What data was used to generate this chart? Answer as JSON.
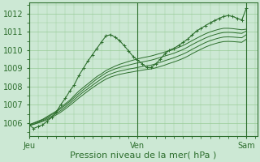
{
  "background_color": "#cce8d4",
  "grid_color": "#99cc99",
  "line_color": "#2d6e2d",
  "xlabel": "Pression niveau de la mer( hPa )",
  "xlabel_fontsize": 8,
  "tick_label_fontsize": 7,
  "day_labels": [
    "Jeu",
    "Ven",
    "Sam"
  ],
  "day_positions": [
    0.0,
    0.5,
    1.0
  ],
  "ylim": [
    1005.3,
    1012.6
  ],
  "yticks": [
    1006,
    1007,
    1008,
    1009,
    1010,
    1011,
    1012
  ],
  "xlim": [
    0.0,
    1.05
  ],
  "n_points": 49,
  "series_marked": [
    1005.9,
    1005.7,
    1005.8,
    1005.9,
    1006.1,
    1006.3,
    1006.6,
    1007.0,
    1007.35,
    1007.75,
    1008.1,
    1008.6,
    1009.0,
    1009.4,
    1009.75,
    1010.1,
    1010.45,
    1010.78,
    1010.85,
    1010.72,
    1010.52,
    1010.25,
    1009.95,
    1009.65,
    1009.45,
    1009.25,
    1009.05,
    1009.05,
    1009.25,
    1009.5,
    1009.8,
    1010.0,
    1010.1,
    1010.25,
    1010.42,
    1010.6,
    1010.82,
    1011.05,
    1011.2,
    1011.35,
    1011.5,
    1011.62,
    1011.75,
    1011.85,
    1011.9,
    1011.85,
    1011.75,
    1011.65,
    1012.3
  ],
  "series_linear": [
    [
      1005.9,
      1006.0,
      1006.1,
      1006.2,
      1006.35,
      1006.5,
      1006.65,
      1006.85,
      1007.05,
      1007.25,
      1007.5,
      1007.75,
      1007.95,
      1008.15,
      1008.35,
      1008.55,
      1008.7,
      1008.88,
      1009.0,
      1009.12,
      1009.22,
      1009.3,
      1009.38,
      1009.45,
      1009.52,
      1009.58,
      1009.63,
      1009.68,
      1009.75,
      1009.82,
      1009.9,
      1009.97,
      1010.05,
      1010.15,
      1010.25,
      1010.38,
      1010.52,
      1010.65,
      1010.78,
      1010.9,
      1011.0,
      1011.08,
      1011.15,
      1011.2,
      1011.2,
      1011.18,
      1011.15,
      1011.12,
      1011.15
    ],
    [
      1005.9,
      1005.98,
      1006.07,
      1006.17,
      1006.3,
      1006.45,
      1006.6,
      1006.78,
      1006.97,
      1007.17,
      1007.4,
      1007.62,
      1007.83,
      1008.02,
      1008.22,
      1008.42,
      1008.58,
      1008.75,
      1008.87,
      1008.97,
      1009.05,
      1009.12,
      1009.18,
      1009.24,
      1009.3,
      1009.35,
      1009.4,
      1009.45,
      1009.52,
      1009.6,
      1009.68,
      1009.75,
      1009.83,
      1009.93,
      1010.03,
      1010.16,
      1010.3,
      1010.43,
      1010.55,
      1010.67,
      1010.77,
      1010.85,
      1010.92,
      1010.97,
      1010.98,
      1010.97,
      1010.94,
      1010.92,
      1011.05
    ],
    [
      1005.85,
      1005.93,
      1006.02,
      1006.12,
      1006.24,
      1006.37,
      1006.52,
      1006.68,
      1006.87,
      1007.07,
      1007.28,
      1007.5,
      1007.7,
      1007.88,
      1008.07,
      1008.25,
      1008.42,
      1008.58,
      1008.69,
      1008.78,
      1008.85,
      1008.9,
      1008.96,
      1009.0,
      1009.05,
      1009.1,
      1009.14,
      1009.18,
      1009.25,
      1009.33,
      1009.42,
      1009.5,
      1009.58,
      1009.68,
      1009.78,
      1009.9,
      1010.04,
      1010.17,
      1010.3,
      1010.42,
      1010.52,
      1010.6,
      1010.67,
      1010.72,
      1010.73,
      1010.72,
      1010.7,
      1010.68,
      1010.85
    ],
    [
      1005.85,
      1005.92,
      1006.0,
      1006.08,
      1006.18,
      1006.3,
      1006.44,
      1006.59,
      1006.77,
      1006.96,
      1007.16,
      1007.37,
      1007.56,
      1007.75,
      1007.93,
      1008.1,
      1008.26,
      1008.41,
      1008.52,
      1008.6,
      1008.67,
      1008.72,
      1008.77,
      1008.81,
      1008.86,
      1008.9,
      1008.94,
      1008.97,
      1009.03,
      1009.1,
      1009.18,
      1009.27,
      1009.35,
      1009.44,
      1009.54,
      1009.66,
      1009.8,
      1009.93,
      1010.05,
      1010.17,
      1010.27,
      1010.35,
      1010.42,
      1010.47,
      1010.48,
      1010.47,
      1010.45,
      1010.43,
      1010.6
    ]
  ]
}
